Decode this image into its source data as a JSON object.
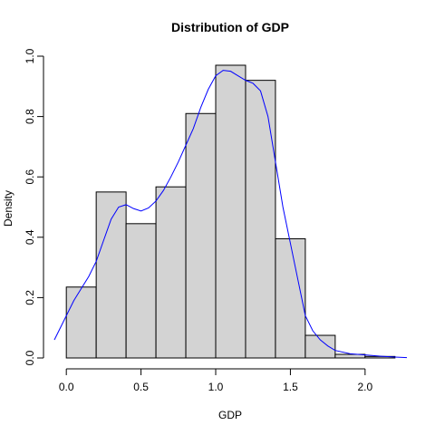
{
  "chart_data": {
    "type": "bar",
    "title": "Distribution of GDP",
    "xlabel": "GDP",
    "ylabel": "Density",
    "xlim": [
      -0.08,
      2.28
    ],
    "ylim": [
      0,
      1.0
    ],
    "x_ticks": [
      0.0,
      0.5,
      1.0,
      1.5,
      2.0
    ],
    "x_tick_labels": [
      "0.0",
      "0.5",
      "1.0",
      "1.5",
      "2.0"
    ],
    "y_ticks": [
      0.0,
      0.2,
      0.4,
      0.6,
      0.8,
      1.0
    ],
    "y_tick_labels": [
      "0.0",
      "0.2",
      "0.4",
      "0.6",
      "0.8",
      "1.0"
    ],
    "grid": false,
    "bar_color": "#d3d3d3",
    "bar_edge_color": "#000000",
    "bins": [
      {
        "x0": 0.0,
        "x1": 0.2,
        "density": 0.235
      },
      {
        "x0": 0.2,
        "x1": 0.4,
        "density": 0.55
      },
      {
        "x0": 0.4,
        "x1": 0.6,
        "density": 0.445
      },
      {
        "x0": 0.6,
        "x1": 0.8,
        "density": 0.567
      },
      {
        "x0": 0.8,
        "x1": 1.0,
        "density": 0.81
      },
      {
        "x0": 1.0,
        "x1": 1.2,
        "density": 0.97
      },
      {
        "x0": 1.2,
        "x1": 1.4,
        "density": 0.92
      },
      {
        "x0": 1.4,
        "x1": 1.6,
        "density": 0.395
      },
      {
        "x0": 1.6,
        "x1": 1.8,
        "density": 0.075
      },
      {
        "x0": 1.8,
        "x1": 2.0,
        "density": 0.012
      },
      {
        "x0": 2.0,
        "x1": 2.2,
        "density": 0.005
      }
    ],
    "density_curve": {
      "color": "#0000ff",
      "x": [
        -0.08,
        0.0,
        0.05,
        0.1,
        0.15,
        0.2,
        0.25,
        0.3,
        0.35,
        0.4,
        0.45,
        0.5,
        0.55,
        0.6,
        0.65,
        0.7,
        0.75,
        0.8,
        0.85,
        0.9,
        0.95,
        1.0,
        1.05,
        1.1,
        1.15,
        1.2,
        1.25,
        1.3,
        1.35,
        1.4,
        1.45,
        1.5,
        1.55,
        1.6,
        1.65,
        1.7,
        1.75,
        1.8,
        1.9,
        2.0,
        2.1,
        2.2,
        2.28
      ],
      "y": [
        0.06,
        0.14,
        0.19,
        0.23,
        0.27,
        0.32,
        0.39,
        0.46,
        0.5,
        0.508,
        0.495,
        0.487,
        0.497,
        0.52,
        0.555,
        0.6,
        0.65,
        0.705,
        0.76,
        0.83,
        0.89,
        0.935,
        0.953,
        0.95,
        0.935,
        0.92,
        0.91,
        0.885,
        0.8,
        0.65,
        0.5,
        0.38,
        0.26,
        0.14,
        0.09,
        0.06,
        0.04,
        0.025,
        0.014,
        0.01,
        0.006,
        0.003,
        0.001
      ]
    }
  }
}
